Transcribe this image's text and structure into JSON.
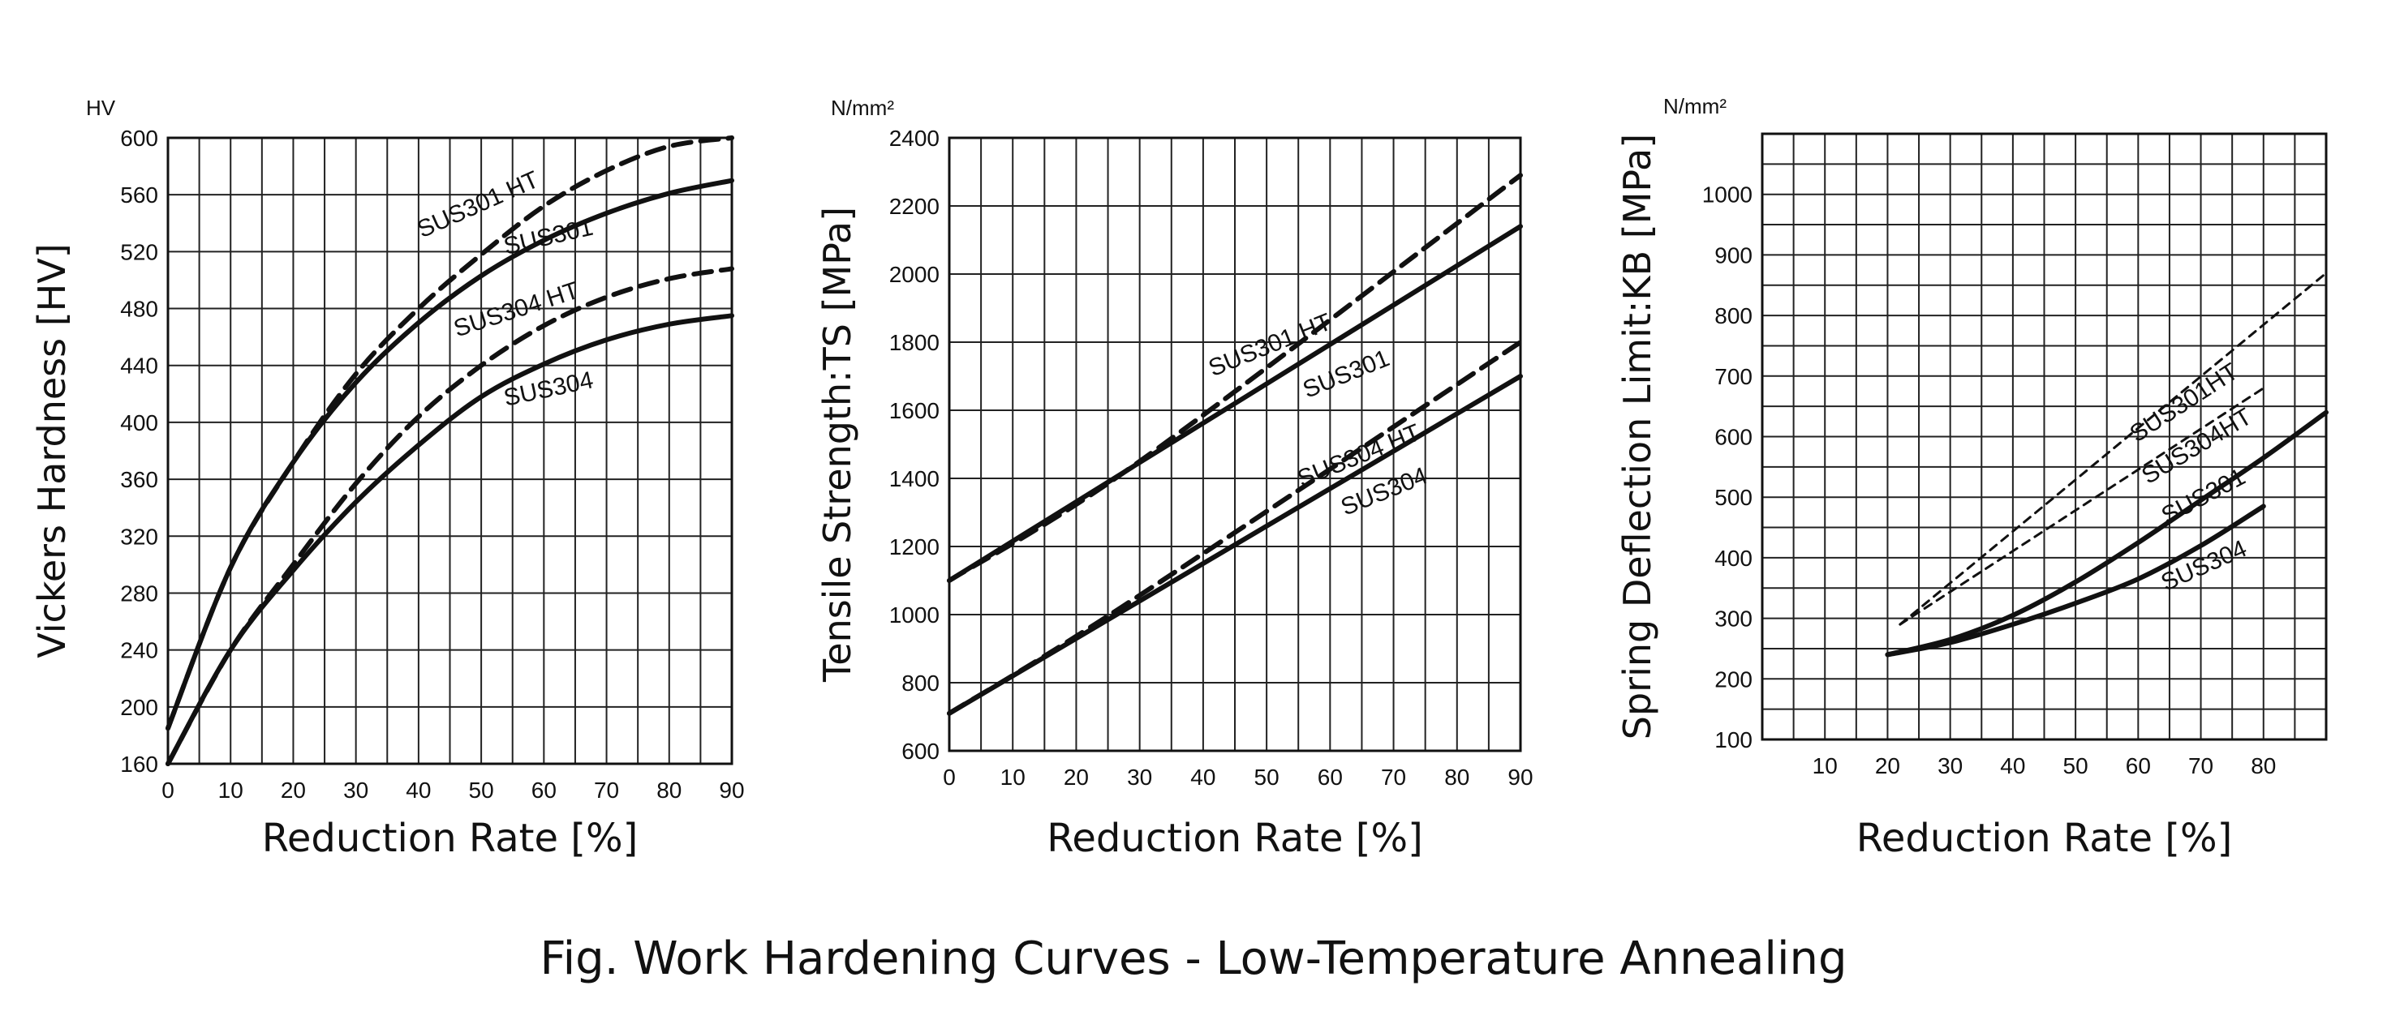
{
  "caption": "Fig. Work Hardening Curves - Low-Temperature Annealing",
  "chart_data": [
    {
      "type": "line",
      "unit_label": "HV",
      "xlabel": "Reduction Rate [%]",
      "ylabel": "Vickers Hardness [HV]",
      "xlim": [
        0,
        90
      ],
      "ylim": [
        160,
        600
      ],
      "xticks": [
        0,
        10,
        20,
        30,
        40,
        50,
        60,
        70,
        80,
        90
      ],
      "yticks": [
        160,
        200,
        240,
        280,
        320,
        360,
        400,
        440,
        480,
        520,
        560,
        600
      ],
      "grid": true,
      "series": [
        {
          "name": "SUS301 HT",
          "dashed": true,
          "label_at": [
            50,
            548
          ],
          "label_angle": -24,
          "x": [
            0,
            10,
            20,
            30,
            40,
            50,
            60,
            70,
            80,
            90
          ],
          "y": [
            185,
            298,
            372,
            434,
            480,
            518,
            552,
            577,
            594,
            600
          ]
        },
        {
          "name": "SUS301",
          "dashed": false,
          "label_at": [
            61,
            525
          ],
          "label_angle": -13,
          "x": [
            0,
            10,
            20,
            30,
            40,
            50,
            60,
            70,
            80,
            90
          ],
          "y": [
            185,
            298,
            372,
            428,
            470,
            503,
            528,
            547,
            561,
            570
          ]
        },
        {
          "name": "SUS304 HT",
          "dashed": true,
          "label_at": [
            56,
            474
          ],
          "label_angle": -18,
          "x": [
            0,
            10,
            20,
            30,
            40,
            50,
            60,
            70,
            80,
            90
          ],
          "y": [
            160,
            240,
            300,
            357,
            404,
            440,
            468,
            488,
            501,
            508
          ]
        },
        {
          "name": "SUS304",
          "dashed": false,
          "label_at": [
            61,
            418
          ],
          "label_angle": -12,
          "x": [
            0,
            10,
            20,
            30,
            40,
            50,
            60,
            70,
            80,
            90
          ],
          "y": [
            160,
            240,
            296,
            344,
            384,
            418,
            441,
            458,
            469,
            475
          ]
        }
      ]
    },
    {
      "type": "line",
      "unit_label": "N/mm²",
      "xlabel": "Reduction Rate [%]",
      "ylabel": "Tensile Strength:TS [MPa]",
      "xlim": [
        0,
        90
      ],
      "ylim": [
        600,
        2400
      ],
      "xticks": [
        0,
        10,
        20,
        30,
        40,
        50,
        60,
        70,
        80,
        90
      ],
      "yticks": [
        600,
        800,
        1000,
        1200,
        1400,
        1600,
        1800,
        2000,
        2200,
        2400
      ],
      "grid": true,
      "series": [
        {
          "name": "SUS301 HT",
          "dashed": true,
          "label_at": [
            51,
            1770
          ],
          "label_angle": -22,
          "x": [
            0,
            30,
            90
          ],
          "y": [
            1100,
            1450,
            2290
          ]
        },
        {
          "name": "SUS301",
          "dashed": false,
          "label_at": [
            63,
            1685
          ],
          "label_angle": -22,
          "x": [
            0,
            90
          ],
          "y": [
            1100,
            2140
          ]
        },
        {
          "name": "SUS304 HT",
          "dashed": true,
          "label_at": [
            65,
            1445
          ],
          "label_angle": -22,
          "x": [
            0,
            27,
            90
          ],
          "y": [
            710,
            1020,
            1800
          ]
        },
        {
          "name": "SUS304",
          "dashed": false,
          "label_at": [
            69,
            1340
          ],
          "label_angle": -22,
          "x": [
            0,
            90
          ],
          "y": [
            710,
            1700
          ]
        }
      ]
    },
    {
      "type": "line",
      "unit_label": "N/mm²",
      "xlabel": "Reduction Rate [%]",
      "ylabel": "Spring Deflection Limit:KB [MPa]",
      "xlim": [
        0,
        90
      ],
      "ylim": [
        100,
        1100
      ],
      "xticks": [
        10,
        20,
        30,
        40,
        50,
        60,
        70,
        80
      ],
      "yticks": [
        100,
        200,
        300,
        400,
        500,
        600,
        700,
        800,
        900,
        1000
      ],
      "grid": true,
      "series": [
        {
          "name": "SUS301HT",
          "dashed": true,
          "thin": true,
          "label_at": [
            68,
            645
          ],
          "label_angle": -33,
          "x": [
            22,
            90
          ],
          "y": [
            290,
            870
          ]
        },
        {
          "name": "SUS304HT",
          "dashed": true,
          "thin": true,
          "label_at": [
            70,
            573
          ],
          "label_angle": -31,
          "x": [
            22,
            80
          ],
          "y": [
            290,
            680
          ]
        },
        {
          "name": "SUS301",
          "dashed": false,
          "label_at": [
            71,
            490
          ],
          "label_angle": -28,
          "x": [
            20,
            30,
            40,
            50,
            60,
            70,
            80,
            90
          ],
          "y": [
            240,
            265,
            305,
            360,
            425,
            495,
            565,
            640
          ]
        },
        {
          "name": "SUS304",
          "dashed": false,
          "label_at": [
            71,
            375
          ],
          "label_angle": -24,
          "x": [
            20,
            30,
            40,
            50,
            60,
            70,
            80
          ],
          "y": [
            240,
            260,
            290,
            325,
            365,
            420,
            485
          ]
        }
      ]
    }
  ]
}
